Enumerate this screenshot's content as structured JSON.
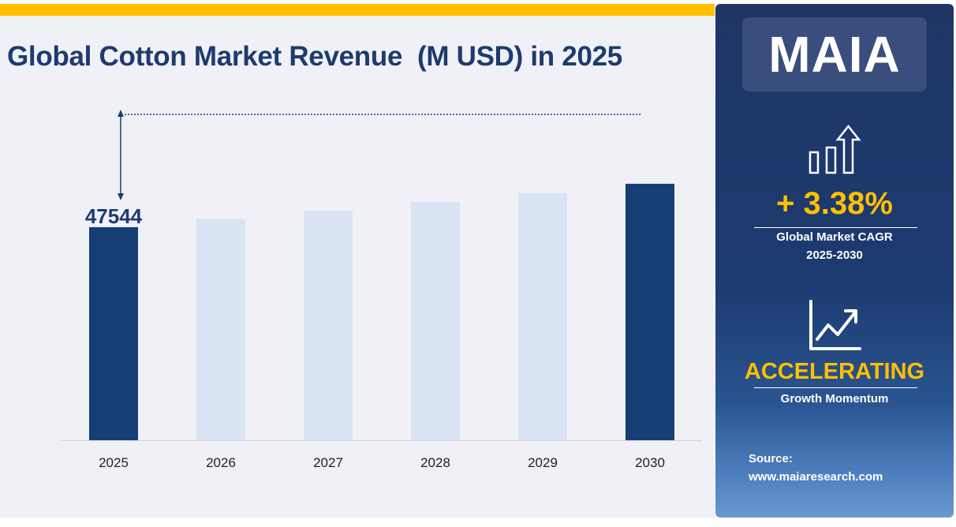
{
  "title": "Global Cotton Market Revenue  (M USD) in 2025",
  "sidebar": {
    "logo": "MAIA",
    "cagr_value": "+ 3.38%",
    "cagr_label_1": "Global Market CAGR",
    "cagr_label_2": "2025-2030",
    "momentum_value": "ACCELERATING",
    "momentum_label": "Growth Momentum",
    "source_label": "Source:",
    "source_url": "www.maiaresearch.com",
    "icons": [
      "bar-chart-up-arrow-icon",
      "line-chart-trend-icon"
    ]
  },
  "colors": {
    "accent": "#ffc000",
    "highlight_bar": "#173e74",
    "bar": "#dae3f3",
    "title": "#1f3a6e"
  },
  "chart_data": {
    "type": "bar",
    "title": "Global Cotton Market Revenue  (M USD) in 2025",
    "categories": [
      "2025",
      "2026",
      "2027",
      "2028",
      "2029",
      "2030"
    ],
    "values": [
      47544,
      49151,
      50813,
      52530,
      54306,
      56141
    ],
    "highlighted": [
      "2025",
      "2030"
    ],
    "data_labels": [
      {
        "category": "2025",
        "text": "47544"
      }
    ],
    "grid": false,
    "xlabel": "",
    "ylabel": ""
  }
}
